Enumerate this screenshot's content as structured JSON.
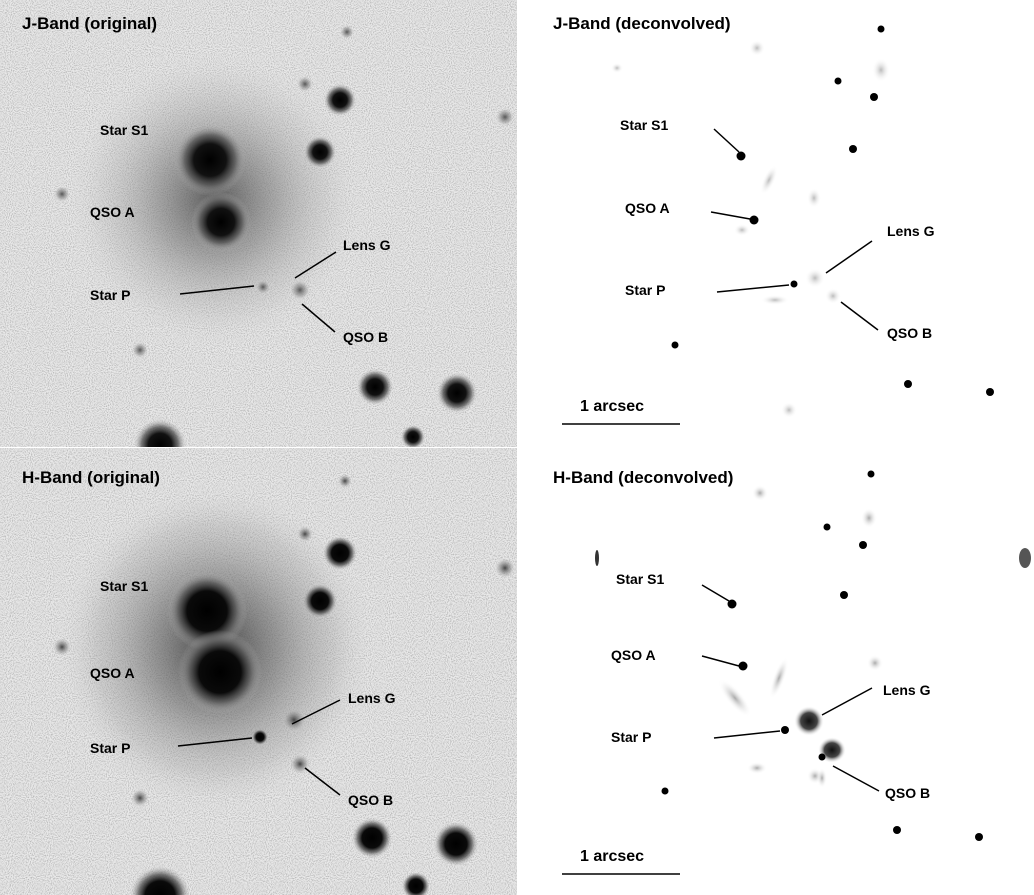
{
  "panels": [
    {
      "id": "j_original",
      "title": "J-Band (original)",
      "labels": {
        "star_s1": "Star S1",
        "qso_a": "QSO A",
        "star_p": "Star P",
        "lens_g": "Lens G",
        "qso_b": "QSO B"
      }
    },
    {
      "id": "j_deconvolved",
      "title": "J-Band (deconvolved)",
      "labels": {
        "star_s1": "Star S1",
        "qso_a": "QSO A",
        "star_p": "Star P",
        "lens_g": "Lens G",
        "qso_b": "QSO B"
      },
      "scale_bar": "1 arcsec"
    },
    {
      "id": "h_original",
      "title": "H-Band (original)",
      "labels": {
        "star_s1": "Star S1",
        "qso_a": "QSO A",
        "star_p": "Star P",
        "lens_g": "Lens G",
        "qso_b": "QSO B"
      }
    },
    {
      "id": "h_deconvolved",
      "title": "H-Band (deconvolved)",
      "labels": {
        "star_s1": "Star S1",
        "qso_a": "QSO A",
        "star_p": "Star P",
        "lens_g": "Lens G",
        "qso_b": "QSO B"
      },
      "scale_bar": "1 arcsec"
    }
  ],
  "colors": {
    "background": "#ffffff",
    "ink": "#000000"
  }
}
